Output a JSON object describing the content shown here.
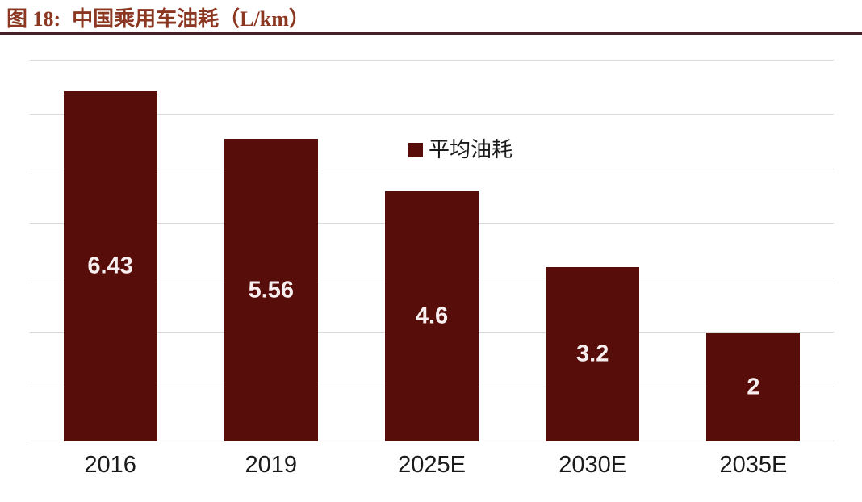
{
  "header": {
    "figure_label": "图 18:",
    "title": "中国乘用车油耗（L/km）"
  },
  "chart_data": {
    "type": "bar",
    "title": "中国乘用车油耗（L/km）",
    "legend": [
      "平均油耗"
    ],
    "legend_position": "top-center",
    "categories": [
      "2016",
      "2019",
      "2025E",
      "2030E",
      "2035E"
    ],
    "values": [
      6.43,
      5.56,
      4.6,
      3.2,
      2
    ],
    "value_labels": [
      "6.43",
      "5.56",
      "4.6",
      "3.2",
      "2"
    ],
    "value_label_position": "inside-center",
    "xlabel": "",
    "ylabel": "",
    "ylim": [
      0,
      7
    ],
    "grid_interval": 1,
    "grid": "horizontal-only",
    "y_tick_labels_visible": false,
    "colors": {
      "bar": "#570E0A",
      "gridline": "#D9D9D9",
      "value_label": "#F7EFEF",
      "axis_label": "#1A1A1A",
      "title": "#8B3721",
      "title_rule": "#46212A"
    }
  }
}
